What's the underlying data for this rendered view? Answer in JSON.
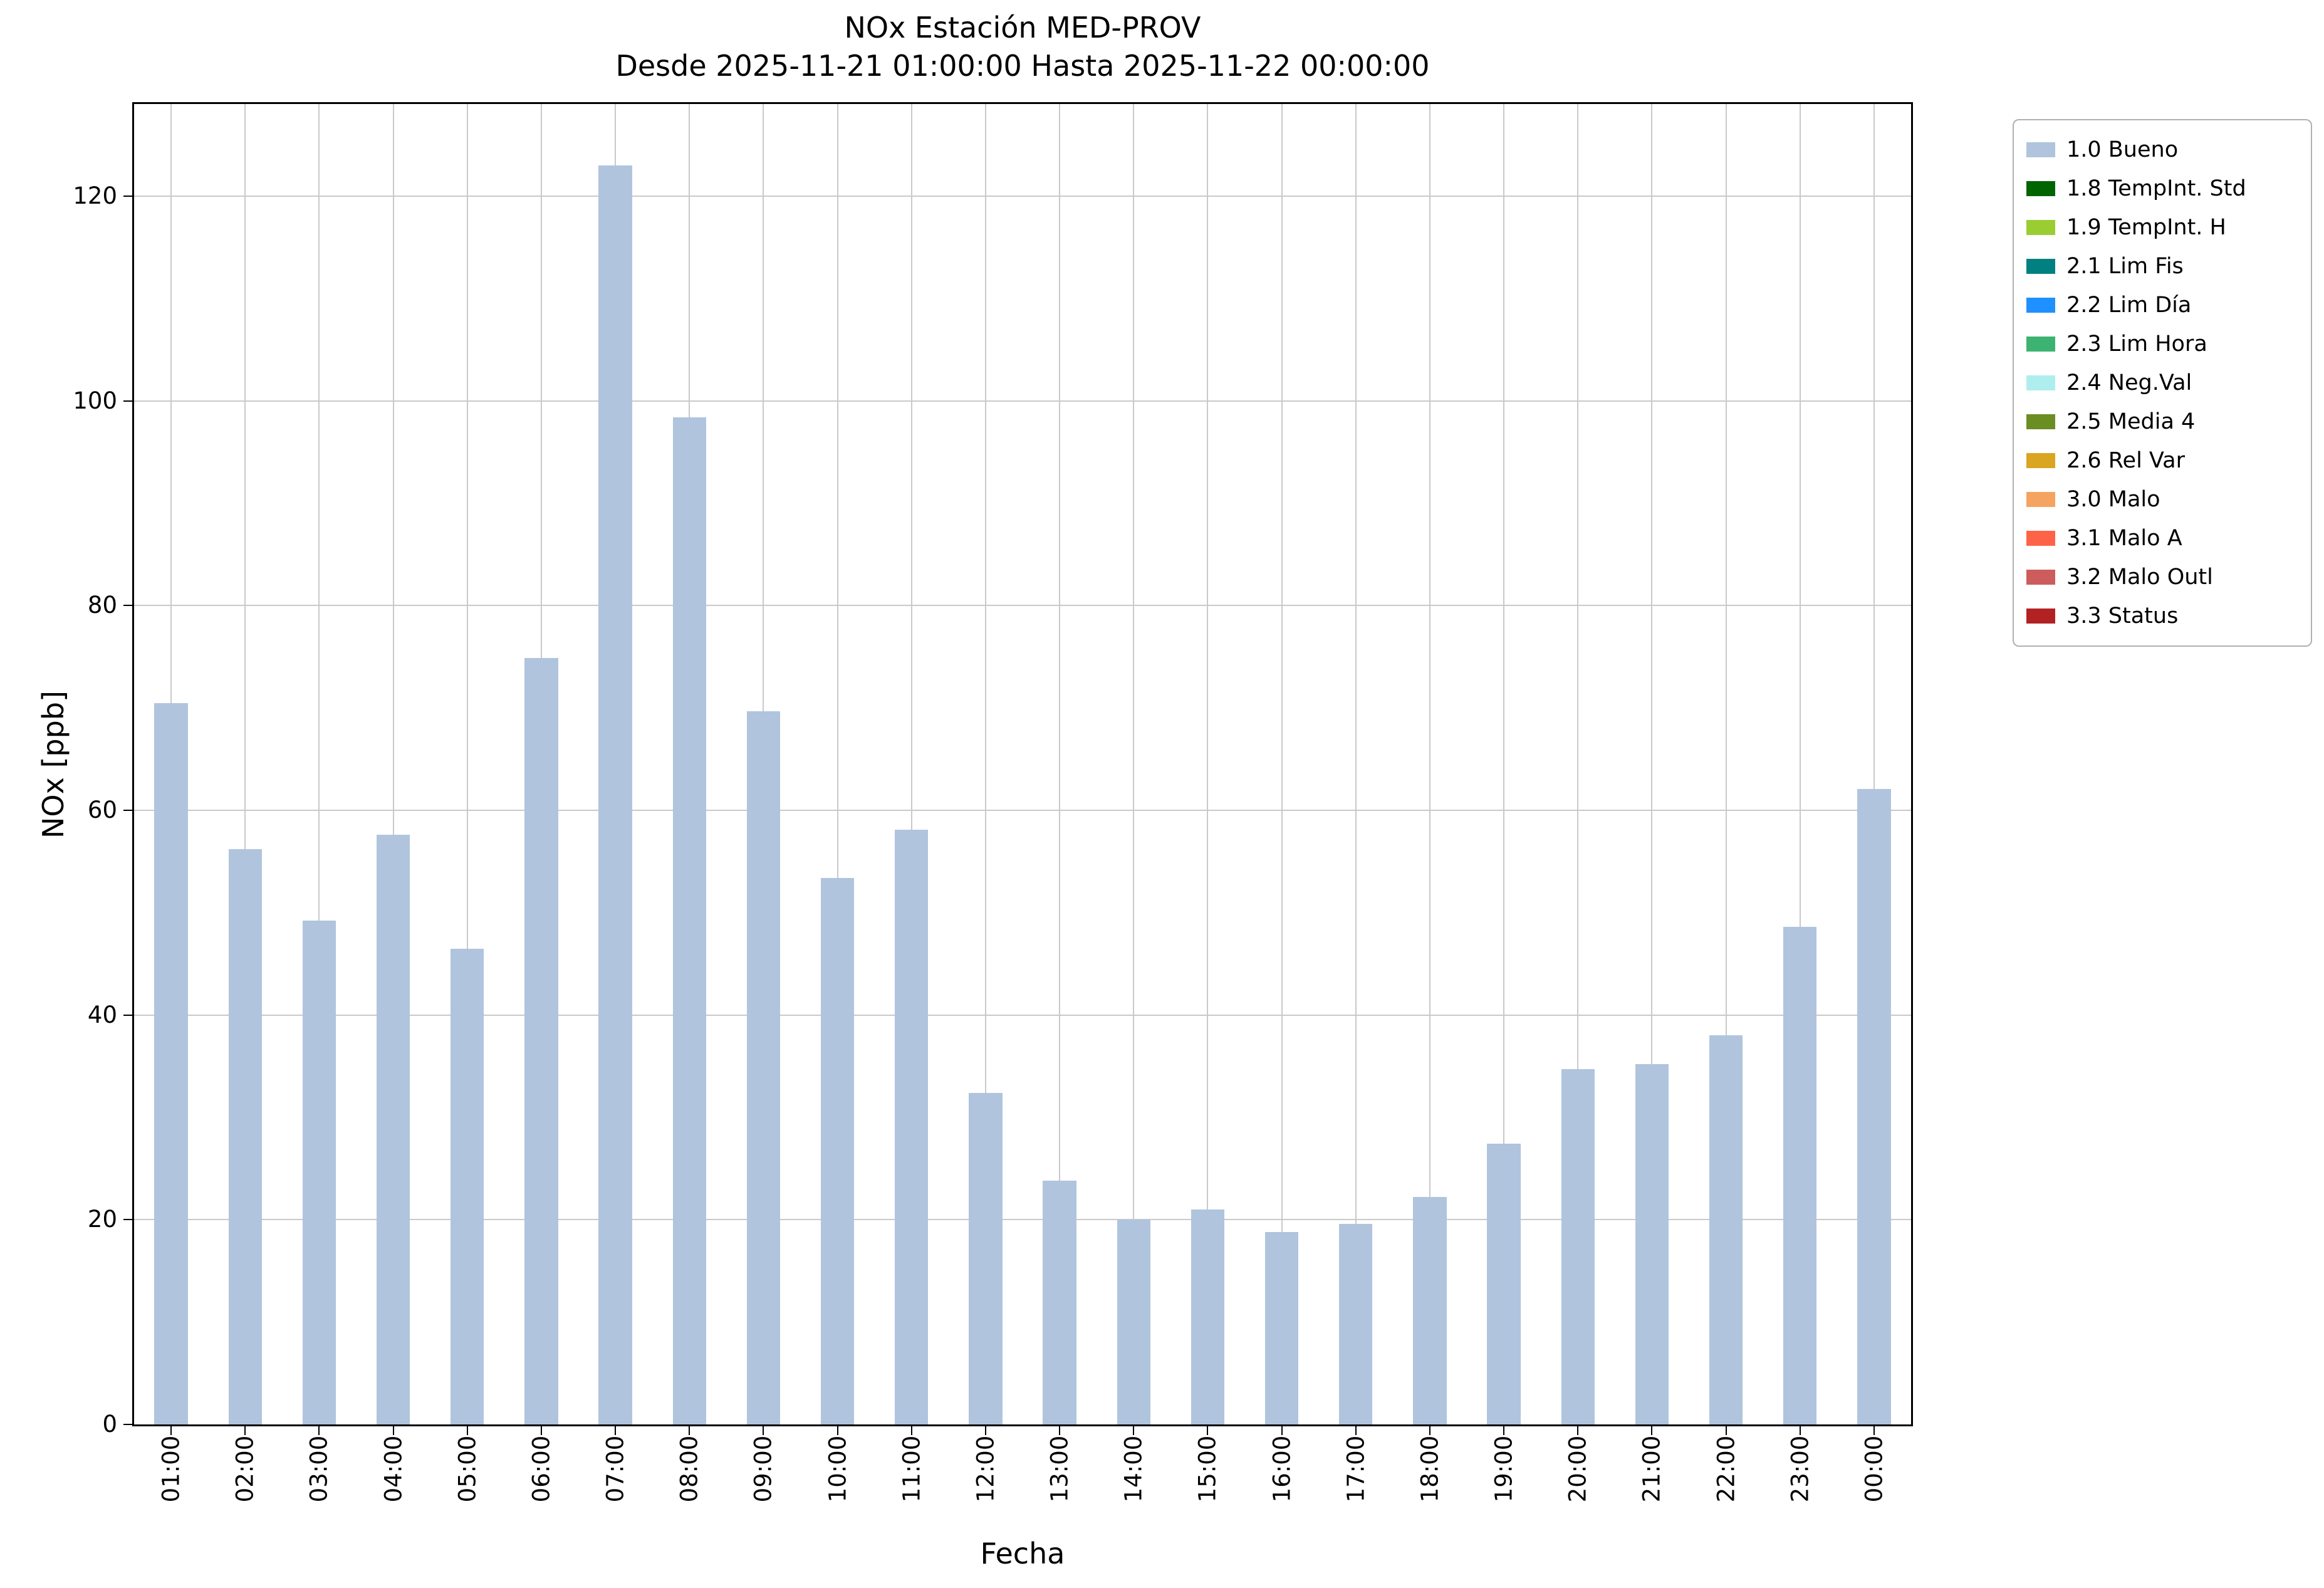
{
  "chart_data": {
    "type": "bar",
    "title": "NOx Estación MED-PROV",
    "subtitle": "Desde 2025-11-21 01:00:00 Hasta 2025-11-22 00:00:00",
    "xlabel": "Fecha",
    "ylabel": "NOx [ppb]",
    "categories": [
      "01:00",
      "02:00",
      "03:00",
      "04:00",
      "05:00",
      "06:00",
      "07:00",
      "08:00",
      "09:00",
      "10:00",
      "11:00",
      "12:00",
      "13:00",
      "14:00",
      "15:00",
      "16:00",
      "17:00",
      "18:00",
      "19:00",
      "20:00",
      "21:00",
      "22:00",
      "23:00",
      "00:00"
    ],
    "values": [
      70.5,
      56.2,
      49.2,
      57.6,
      46.5,
      74.9,
      123.0,
      98.4,
      69.7,
      53.4,
      58.1,
      32.4,
      23.8,
      20.0,
      21.0,
      18.8,
      19.6,
      22.2,
      27.4,
      34.7,
      35.2,
      38.0,
      48.6,
      62.1
    ],
    "ylim": [
      0,
      129
    ],
    "yticks": [
      0,
      20,
      40,
      60,
      80,
      100,
      120
    ],
    "bar_color": "#b0c4de",
    "grid": true,
    "legend_position": "outside-right",
    "legend": [
      {
        "label": "1.0 Bueno",
        "color": "#b0c4de"
      },
      {
        "label": "1.8 TempInt. Std",
        "color": "#006400"
      },
      {
        "label": "1.9 TempInt. H",
        "color": "#9acd32"
      },
      {
        "label": "2.1 Lim Fis",
        "color": "#008080"
      },
      {
        "label": "2.2 Lim Día",
        "color": "#1e90ff"
      },
      {
        "label": "2.3 Lim Hora",
        "color": "#3cb371"
      },
      {
        "label": "2.4 Neg.Val",
        "color": "#afeeee"
      },
      {
        "label": "2.5 Media 4",
        "color": "#6b8e23"
      },
      {
        "label": "2.6 Rel Var",
        "color": "#daa520"
      },
      {
        "label": "3.0 Malo",
        "color": "#f4a460"
      },
      {
        "label": "3.1 Malo A",
        "color": "#ff6347"
      },
      {
        "label": "3.2 Malo Outl",
        "color": "#cd5c5c"
      },
      {
        "label": "3.3 Status",
        "color": "#b22222"
      }
    ]
  }
}
